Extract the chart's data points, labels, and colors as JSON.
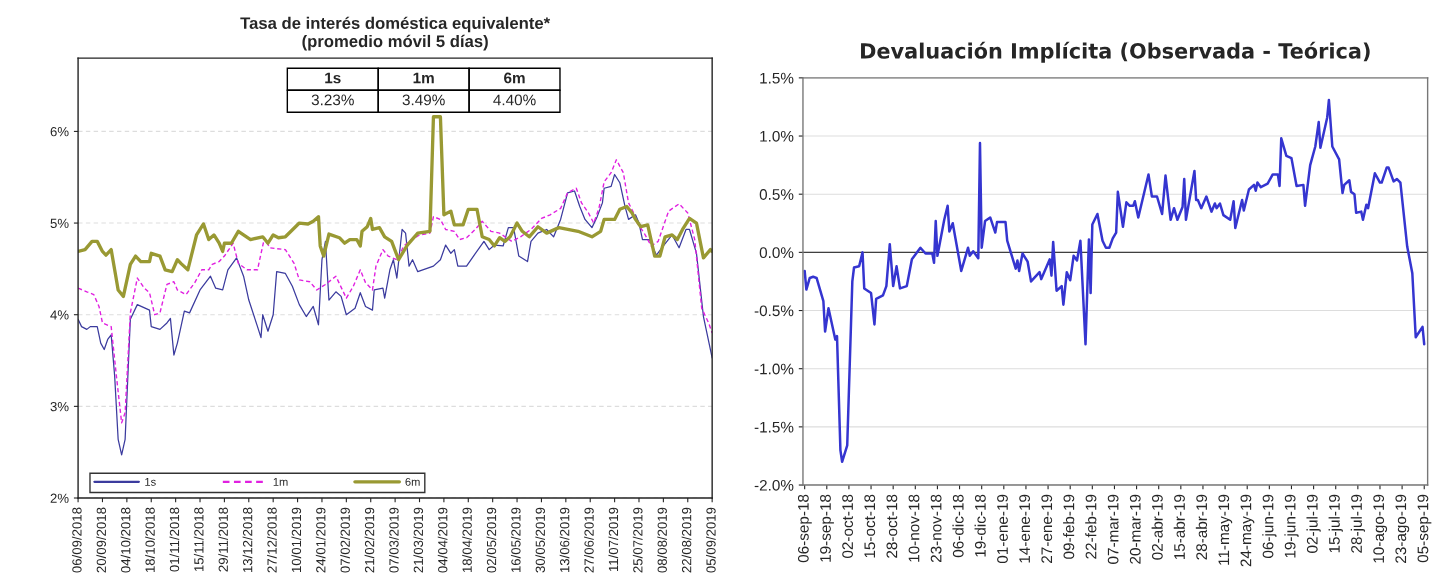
{
  "chart_data": [
    {
      "type": "line",
      "title": "Tasa de interés doméstica equivalente*",
      "subtitle": "(promedio móvil 5 días)",
      "annotations": [
        "1s",
        "1m",
        "6m",
        "3.23%",
        "3.49%",
        "4.40%"
      ],
      "ylim": [
        2,
        6.8
      ],
      "yticks": [
        {
          "value": 2,
          "label": "2%"
        },
        {
          "value": 3,
          "label": "3%"
        },
        {
          "value": 4,
          "label": "4%"
        },
        {
          "value": 5,
          "label": "5%"
        },
        {
          "value": 6,
          "label": "6%"
        }
      ],
      "xlim": [
        "2018-09-06",
        "2019-09-05"
      ],
      "xticks": [
        {
          "value": "2018-09-06",
          "label": "06/09/2018"
        },
        {
          "value": "2018-09-20",
          "label": "20/09/2018"
        },
        {
          "value": "2018-10-04",
          "label": "04/10/2018"
        },
        {
          "value": "2018-10-18",
          "label": "18/10/2018"
        },
        {
          "value": "2018-11-01",
          "label": "01/11/2018"
        },
        {
          "value": "2018-11-15",
          "label": "15/11/2018"
        },
        {
          "value": "2018-11-29",
          "label": "29/11/2018"
        },
        {
          "value": "2018-12-13",
          "label": "13/12/2018"
        },
        {
          "value": "2018-12-27",
          "label": "27/12/2018"
        },
        {
          "value": "2019-01-10",
          "label": "10/01/2019"
        },
        {
          "value": "2019-01-24",
          "label": "24/01/2019"
        },
        {
          "value": "2019-02-07",
          "label": "07/02/2019"
        },
        {
          "value": "2019-02-21",
          "label": "21/02/2019"
        },
        {
          "value": "2019-03-07",
          "label": "07/03/2019"
        },
        {
          "value": "2019-03-21",
          "label": "21/03/2019"
        },
        {
          "value": "2019-04-04",
          "label": "04/04/2019"
        },
        {
          "value": "2019-04-18",
          "label": "18/04/2019"
        },
        {
          "value": "2019-05-02",
          "label": "02/05/2019"
        },
        {
          "value": "2019-05-16",
          "label": "16/05/2019"
        },
        {
          "value": "2019-05-30",
          "label": "30/05/2019"
        },
        {
          "value": "2019-06-13",
          "label": "13/06/2019"
        },
        {
          "value": "2019-06-27",
          "label": "27/06/2019"
        },
        {
          "value": "2019-07-11",
          "label": "11/07/2019"
        },
        {
          "value": "2019-07-25",
          "label": "25/07/2019"
        },
        {
          "value": "2019-08-08",
          "label": "08/08/2019"
        },
        {
          "value": "2019-08-22",
          "label": "22/08/2019"
        },
        {
          "value": "2019-09-05",
          "label": "05/09/2019"
        }
      ],
      "grid": "y",
      "legend": "bottom left",
      "series": [
        {
          "name": "1s",
          "color": "#3b3b9e",
          "line_style": "solid",
          "x": [
            "2018-09-06",
            "2018-09-08",
            "2018-09-11",
            "2018-09-13",
            "2018-09-17",
            "2018-09-19",
            "2018-09-21",
            "2018-09-23",
            "2018-09-25",
            "2018-09-27",
            "2018-09-29",
            "2018-10-01",
            "2018-10-03",
            "2018-10-06",
            "2018-10-10",
            "2018-10-17",
            "2018-10-18",
            "2018-10-23",
            "2018-10-27",
            "2018-10-29",
            "2018-10-31",
            "2018-11-02",
            "2018-11-06",
            "2018-11-09",
            "2018-11-15",
            "2018-11-21",
            "2018-11-24",
            "2018-11-28",
            "2018-12-01",
            "2018-12-06",
            "2018-12-10",
            "2018-12-13",
            "2018-12-18",
            "2018-12-20",
            "2018-12-21",
            "2018-12-24",
            "2018-12-27",
            "2018-12-29",
            "2019-01-03",
            "2019-01-07",
            "2019-01-11",
            "2019-01-15",
            "2019-01-19",
            "2019-01-22",
            "2019-01-24",
            "2019-01-26",
            "2019-01-28",
            "2019-02-01",
            "2019-02-04",
            "2019-02-07",
            "2019-02-12",
            "2019-02-15",
            "2019-02-18",
            "2019-02-22",
            "2019-02-23",
            "2019-02-28",
            "2019-03-01",
            "2019-03-04",
            "2019-03-06",
            "2019-03-08",
            "2019-03-11",
            "2019-03-13",
            "2019-03-15",
            "2019-03-17",
            "2019-03-20",
            "2019-03-29",
            "2019-04-02",
            "2019-04-05",
            "2019-04-08",
            "2019-04-10",
            "2019-04-12",
            "2019-04-17",
            "2019-04-21",
            "2019-04-27",
            "2019-04-30",
            "2019-05-03",
            "2019-05-08",
            "2019-05-11",
            "2019-05-14",
            "2019-05-17",
            "2019-05-22",
            "2019-05-24",
            "2019-05-28",
            "2019-06-02",
            "2019-06-06",
            "2019-06-10",
            "2019-06-14",
            "2019-06-18",
            "2019-06-21",
            "2019-06-24",
            "2019-06-28",
            "2019-07-01",
            "2019-07-04",
            "2019-07-05",
            "2019-07-09",
            "2019-07-11",
            "2019-07-14",
            "2019-07-17",
            "2019-07-19",
            "2019-07-23",
            "2019-07-25",
            "2019-07-27",
            "2019-07-31",
            "2019-08-04",
            "2019-08-08",
            "2019-08-13",
            "2019-08-17",
            "2019-08-21",
            "2019-08-23",
            "2019-08-27",
            "2019-08-31",
            "2019-09-04",
            "2019-09-05"
          ],
          "values": [
            3.95,
            3.87,
            3.84,
            3.87,
            3.87,
            3.69,
            3.62,
            3.73,
            3.78,
            3.33,
            2.64,
            2.47,
            2.64,
            3.95,
            4.11,
            4.05,
            3.87,
            3.84,
            3.91,
            3.96,
            3.56,
            3.69,
            4.04,
            4.02,
            4.27,
            4.42,
            4.29,
            4.27,
            4.49,
            4.62,
            4.42,
            4.16,
            3.87,
            3.75,
            4.0,
            3.82,
            4.0,
            4.47,
            4.45,
            4.31,
            4.11,
            3.98,
            4.09,
            3.89,
            4.6,
            4.8,
            4.16,
            4.25,
            4.2,
            4.0,
            4.07,
            4.24,
            4.09,
            4.05,
            4.27,
            4.29,
            4.18,
            4.49,
            4.6,
            4.4,
            4.93,
            4.89,
            4.53,
            4.6,
            4.47,
            4.53,
            4.6,
            4.76,
            4.67,
            4.71,
            4.53,
            4.53,
            4.64,
            4.8,
            4.71,
            4.76,
            4.75,
            4.95,
            4.95,
            4.64,
            4.58,
            4.8,
            4.89,
            4.93,
            4.85,
            5.04,
            5.33,
            5.35,
            5.18,
            5.04,
            4.95,
            5.07,
            5.22,
            5.38,
            5.4,
            5.53,
            5.44,
            5.18,
            5.04,
            5.09,
            5.0,
            4.82,
            4.82,
            4.65,
            4.75,
            4.87,
            4.73,
            4.93,
            4.93,
            4.67,
            3.98,
            3.62,
            3.53
          ]
        },
        {
          "name": "1m",
          "color": "#e020e0",
          "line_style": "dashed",
          "x": [
            "2018-09-06",
            "2018-09-11",
            "2018-09-15",
            "2018-09-18",
            "2018-09-20",
            "2018-09-25",
            "2018-09-28",
            "2018-10-01",
            "2018-10-03",
            "2018-10-06",
            "2018-10-10",
            "2018-10-14",
            "2018-10-17",
            "2018-10-20",
            "2018-10-23",
            "2018-10-27",
            "2018-10-31",
            "2018-11-02",
            "2018-11-07",
            "2018-11-12",
            "2018-11-16",
            "2018-11-20",
            "2018-11-22",
            "2018-11-26",
            "2018-11-29",
            "2018-12-04",
            "2018-12-07",
            "2018-12-12",
            "2018-12-18",
            "2018-12-22",
            "2018-12-25",
            "2019-01-03",
            "2019-01-08",
            "2019-01-11",
            "2019-01-17",
            "2019-01-21",
            "2019-01-26",
            "2019-02-01",
            "2019-02-07",
            "2019-02-11",
            "2019-02-15",
            "2019-02-18",
            "2019-02-22",
            "2019-02-24",
            "2019-02-28",
            "2019-03-03",
            "2019-03-08",
            "2019-03-12",
            "2019-03-15",
            "2019-03-21",
            "2019-03-27",
            "2019-03-29",
            "2019-04-02",
            "2019-04-05",
            "2019-04-10",
            "2019-04-13",
            "2019-04-17",
            "2019-04-22",
            "2019-04-26",
            "2019-05-01",
            "2019-05-06",
            "2019-05-13",
            "2019-05-18",
            "2019-05-24",
            "2019-05-30",
            "2019-06-04",
            "2019-06-10",
            "2019-06-14",
            "2019-06-19",
            "2019-06-22",
            "2019-06-26",
            "2019-06-29",
            "2019-07-02",
            "2019-07-05",
            "2019-07-09",
            "2019-07-12",
            "2019-07-16",
            "2019-07-19",
            "2019-07-22",
            "2019-07-24",
            "2019-07-28",
            "2019-08-01",
            "2019-08-05",
            "2019-08-11",
            "2019-08-17",
            "2019-08-22",
            "2019-08-26",
            "2019-08-30",
            "2019-09-03",
            "2019-09-05"
          ],
          "values": [
            4.29,
            4.25,
            4.22,
            4.09,
            3.91,
            3.87,
            3.33,
            2.82,
            2.93,
            4.02,
            4.4,
            4.29,
            4.24,
            4.0,
            4.02,
            4.33,
            4.36,
            4.27,
            4.22,
            4.35,
            4.49,
            4.49,
            4.55,
            4.58,
            4.64,
            4.78,
            4.56,
            4.49,
            4.49,
            4.84,
            4.73,
            4.71,
            4.56,
            4.38,
            4.36,
            4.27,
            4.33,
            4.42,
            4.18,
            4.31,
            4.49,
            4.35,
            4.27,
            4.53,
            4.71,
            4.64,
            4.6,
            4.75,
            4.8,
            4.87,
            4.89,
            5.07,
            5.04,
            4.93,
            4.91,
            4.82,
            4.84,
            4.93,
            5.02,
            4.91,
            4.89,
            4.8,
            4.85,
            4.93,
            5.05,
            5.09,
            5.16,
            5.33,
            5.38,
            5.22,
            5.11,
            5.0,
            5.16,
            5.45,
            5.55,
            5.69,
            5.55,
            5.22,
            5.11,
            5.0,
            4.89,
            4.75,
            4.8,
            5.13,
            5.21,
            5.11,
            4.82,
            4.07,
            3.91,
            3.8
          ]
        },
        {
          "name": "6m",
          "color": "#999933",
          "line_style": "solid",
          "x": [
            "2018-09-06",
            "2018-09-10",
            "2018-09-14",
            "2018-09-17",
            "2018-09-20",
            "2018-09-22",
            "2018-09-25",
            "2018-09-27",
            "2018-09-29",
            "2018-10-02",
            "2018-10-06",
            "2018-10-09",
            "2018-10-12",
            "2018-10-17",
            "2018-10-18",
            "2018-10-23",
            "2018-10-26",
            "2018-10-30",
            "2018-11-02",
            "2018-11-04",
            "2018-11-08",
            "2018-11-13",
            "2018-11-17",
            "2018-11-20",
            "2018-11-23",
            "2018-11-26",
            "2018-11-28",
            "2018-11-29",
            "2018-12-03",
            "2018-12-07",
            "2018-12-14",
            "2018-12-21",
            "2018-12-24",
            "2018-12-27",
            "2018-12-30",
            "2019-01-03",
            "2019-01-11",
            "2019-01-16",
            "2019-01-19",
            "2019-01-22",
            "2019-01-23",
            "2019-01-25",
            "2019-01-28",
            "2019-02-03",
            "2019-02-06",
            "2019-02-09",
            "2019-02-13",
            "2019-02-15",
            "2019-02-16",
            "2019-02-19",
            "2019-02-21",
            "2019-02-22",
            "2019-02-26",
            "2019-03-01",
            "2019-03-05",
            "2019-03-09",
            "2019-03-14",
            "2019-03-20",
            "2019-03-27",
            "2019-03-29",
            "2019-04-02",
            "2019-04-04",
            "2019-04-08",
            "2019-04-10",
            "2019-04-15",
            "2019-04-18",
            "2019-04-23",
            "2019-04-26",
            "2019-04-30",
            "2019-05-03",
            "2019-05-06",
            "2019-05-09",
            "2019-05-12",
            "2019-05-16",
            "2019-05-19",
            "2019-05-23",
            "2019-05-28",
            "2019-06-02",
            "2019-06-09",
            "2019-06-20",
            "2019-06-28",
            "2019-07-03",
            "2019-07-05",
            "2019-07-11",
            "2019-07-14",
            "2019-07-18",
            "2019-07-21",
            "2019-07-23",
            "2019-07-26",
            "2019-07-30",
            "2019-08-03",
            "2019-08-06",
            "2019-08-09",
            "2019-08-13",
            "2019-08-16",
            "2019-08-19",
            "2019-08-23",
            "2019-08-27",
            "2019-08-31",
            "2019-09-04",
            "2019-09-05"
          ],
          "values": [
            4.69,
            4.71,
            4.8,
            4.8,
            4.69,
            4.65,
            4.71,
            4.49,
            4.27,
            4.2,
            4.55,
            4.64,
            4.58,
            4.58,
            4.67,
            4.64,
            4.49,
            4.47,
            4.6,
            4.56,
            4.49,
            4.87,
            4.99,
            4.82,
            4.87,
            4.78,
            4.69,
            4.78,
            4.78,
            4.91,
            4.82,
            4.85,
            4.78,
            4.87,
            4.84,
            4.85,
            5.0,
            4.99,
            5.02,
            5.07,
            4.75,
            4.64,
            4.88,
            4.84,
            4.78,
            4.82,
            4.82,
            4.75,
            4.91,
            4.96,
            5.05,
            4.93,
            4.95,
            4.85,
            4.8,
            4.6,
            4.76,
            4.89,
            4.91,
            6.16,
            6.16,
            5.09,
            5.13,
            4.98,
            4.98,
            5.15,
            5.15,
            4.85,
            4.82,
            4.75,
            4.84,
            4.8,
            4.85,
            5.0,
            4.91,
            4.85,
            4.96,
            4.89,
            4.95,
            4.91,
            4.85,
            4.91,
            5.04,
            5.04,
            5.15,
            5.18,
            5.11,
            5.04,
            4.96,
            4.98,
            4.64,
            4.64,
            4.85,
            4.87,
            4.82,
            4.93,
            5.05,
            5.0,
            4.62,
            4.71,
            4.69
          ]
        }
      ]
    },
    {
      "type": "line",
      "title": "Devaluación Implícita (Observada - Teórica)",
      "ylim": [
        -2.0,
        1.5
      ],
      "yticks": [
        {
          "value": -2.0,
          "label": "-2.0%"
        },
        {
          "value": -1.5,
          "label": "-1.5%"
        },
        {
          "value": -1.0,
          "label": "-1.0%"
        },
        {
          "value": -0.5,
          "label": "-0.5%"
        },
        {
          "value": 0.0,
          "label": "0.0%"
        },
        {
          "value": 0.5,
          "label": "0.5%"
        },
        {
          "value": 1.0,
          "label": "1.0%"
        },
        {
          "value": 1.5,
          "label": "1.5%"
        }
      ],
      "xlim": [
        "2018-09-05",
        "2019-09-07"
      ],
      "xticks": [
        {
          "value": "2018-09-06",
          "label": "06-sep-18"
        },
        {
          "value": "2018-09-19",
          "label": "19-sep-18"
        },
        {
          "value": "2018-10-02",
          "label": "02-oct-18"
        },
        {
          "value": "2018-10-15",
          "label": "15-oct-18"
        },
        {
          "value": "2018-10-28",
          "label": "28-oct-18"
        },
        {
          "value": "2018-11-10",
          "label": "10-nov-18"
        },
        {
          "value": "2018-11-23",
          "label": "23-nov-18"
        },
        {
          "value": "2018-12-06",
          "label": "06-dic-18"
        },
        {
          "value": "2018-12-19",
          "label": "19-dic-18"
        },
        {
          "value": "2019-01-01",
          "label": "01-ene-19"
        },
        {
          "value": "2019-01-14",
          "label": "14-ene-19"
        },
        {
          "value": "2019-01-27",
          "label": "27-ene-19"
        },
        {
          "value": "2019-02-09",
          "label": "09-feb-19"
        },
        {
          "value": "2019-02-22",
          "label": "22-feb-19"
        },
        {
          "value": "2019-03-07",
          "label": "07-mar-19"
        },
        {
          "value": "2019-03-20",
          "label": "20-mar-19"
        },
        {
          "value": "2019-04-02",
          "label": "02-abr-19"
        },
        {
          "value": "2019-04-15",
          "label": "15-abr-19"
        },
        {
          "value": "2019-04-28",
          "label": "28-abr-19"
        },
        {
          "value": "2019-05-11",
          "label": "11-may-19"
        },
        {
          "value": "2019-05-24",
          "label": "24-may-19"
        },
        {
          "value": "2019-06-06",
          "label": "06-jun-19"
        },
        {
          "value": "2019-06-19",
          "label": "19-jun-19"
        },
        {
          "value": "2019-07-02",
          "label": "02-jul-19"
        },
        {
          "value": "2019-07-15",
          "label": "15-jul-19"
        },
        {
          "value": "2019-07-28",
          "label": "28-jul-19"
        },
        {
          "value": "2019-08-10",
          "label": "10-ago-19"
        },
        {
          "value": "2019-08-23",
          "label": "23-ago-19"
        },
        {
          "value": "2019-09-05",
          "label": "05-sep-19"
        }
      ],
      "grid": "y",
      "ref_lines": [
        {
          "axis": "y",
          "value": 0.0,
          "color": "#404040"
        }
      ],
      "series": [
        {
          "color": "#3535d0",
          "x": [
            "2018-09-06",
            "2018-09-07",
            "2018-09-09",
            "2018-09-11",
            "2018-09-13",
            "2018-09-17",
            "2018-09-18",
            "2018-09-20",
            "2018-09-24",
            "2018-09-25",
            "2018-09-27",
            "2018-09-28",
            "2018-10-01",
            "2018-10-04",
            "2018-10-05",
            "2018-10-08",
            "2018-10-10",
            "2018-10-11",
            "2018-10-15",
            "2018-10-17",
            "2018-10-18",
            "2018-10-22",
            "2018-10-24",
            "2018-10-26",
            "2018-10-28",
            "2018-10-30",
            "2018-11-01",
            "2018-11-05",
            "2018-11-08",
            "2018-11-13",
            "2018-11-16",
            "2018-11-20",
            "2018-11-21",
            "2018-11-22",
            "2018-11-23",
            "2018-11-27",
            "2018-11-29",
            "2018-11-30",
            "2018-12-02",
            "2018-12-07",
            "2018-12-11",
            "2018-12-12",
            "2018-12-14",
            "2018-12-17",
            "2018-12-18",
            "2018-12-19",
            "2018-12-21",
            "2018-12-24",
            "2018-12-27",
            "2018-12-28",
            "2019-01-02",
            "2019-01-03",
            "2019-01-08",
            "2019-01-09",
            "2019-01-10",
            "2019-01-12",
            "2019-01-15",
            "2019-01-17",
            "2019-01-22",
            "2019-01-23",
            "2019-01-28",
            "2019-01-29",
            "2019-01-30",
            "2019-02-01",
            "2019-02-04",
            "2019-02-05",
            "2019-02-07",
            "2019-02-09",
            "2019-02-11",
            "2019-02-13",
            "2019-02-15",
            "2019-02-18",
            "2019-02-20",
            "2019-02-21",
            "2019-02-22",
            "2019-02-25",
            "2019-02-28",
            "2019-03-02",
            "2019-03-04",
            "2019-03-06",
            "2019-03-08",
            "2019-03-09",
            "2019-03-12",
            "2019-03-14",
            "2019-03-16",
            "2019-03-18",
            "2019-03-19",
            "2019-03-21",
            "2019-03-27",
            "2019-03-29",
            "2019-04-01",
            "2019-04-04",
            "2019-04-06",
            "2019-04-09",
            "2019-04-11",
            "2019-04-13",
            "2019-04-16",
            "2019-04-17",
            "2019-04-18",
            "2019-04-23",
            "2019-04-24",
            "2019-04-25",
            "2019-04-27",
            "2019-04-30",
            "2019-05-03",
            "2019-05-05",
            "2019-05-06",
            "2019-05-08",
            "2019-05-10",
            "2019-05-14",
            "2019-05-16",
            "2019-05-17",
            "2019-05-21",
            "2019-05-22",
            "2019-05-25",
            "2019-05-28",
            "2019-05-29",
            "2019-05-30",
            "2019-06-01",
            "2019-06-05",
            "2019-06-08",
            "2019-06-11",
            "2019-06-12",
            "2019-06-13",
            "2019-06-16",
            "2019-06-19",
            "2019-06-21",
            "2019-06-22",
            "2019-06-26",
            "2019-06-27",
            "2019-06-30",
            "2019-07-03",
            "2019-07-05",
            "2019-07-06",
            "2019-07-10",
            "2019-07-11",
            "2019-07-13",
            "2019-07-17",
            "2019-07-19",
            "2019-07-20",
            "2019-07-23",
            "2019-07-24",
            "2019-07-26",
            "2019-07-27",
            "2019-07-30",
            "2019-07-31",
            "2019-08-02",
            "2019-08-03",
            "2019-08-07",
            "2019-08-10",
            "2019-08-11",
            "2019-08-14",
            "2019-08-15",
            "2019-08-18",
            "2019-08-20",
            "2019-08-22",
            "2019-08-26",
            "2019-08-29",
            "2019-08-31",
            "2019-09-04",
            "2019-09-05"
          ],
          "values": [
            -0.16,
            -0.32,
            -0.22,
            -0.21,
            -0.22,
            -0.42,
            -0.68,
            -0.48,
            -0.75,
            -0.72,
            -1.7,
            -1.8,
            -1.66,
            -0.25,
            -0.13,
            -0.12,
            0.0,
            -0.31,
            -0.35,
            -0.62,
            -0.4,
            -0.37,
            -0.29,
            0.07,
            -0.29,
            -0.12,
            -0.31,
            -0.29,
            -0.06,
            0.04,
            -0.01,
            -0.01,
            -0.09,
            0.27,
            -0.03,
            0.28,
            0.4,
            0.18,
            0.25,
            -0.16,
            0.04,
            -0.03,
            0.01,
            -0.05,
            0.94,
            0.04,
            0.27,
            0.3,
            0.17,
            0.26,
            0.26,
            0.1,
            -0.14,
            -0.07,
            -0.16,
            -0.01,
            -0.08,
            -0.25,
            -0.17,
            -0.23,
            -0.06,
            -0.2,
            0.09,
            -0.33,
            -0.29,
            -0.45,
            -0.17,
            -0.24,
            -0.03,
            -0.07,
            0.1,
            -0.79,
            0.11,
            -0.35,
            0.24,
            0.33,
            0.1,
            0.04,
            0.04,
            0.12,
            0.17,
            0.52,
            0.22,
            0.43,
            0.4,
            0.4,
            0.44,
            0.3,
            0.67,
            0.48,
            0.48,
            0.33,
            0.66,
            0.28,
            0.38,
            0.28,
            0.39,
            0.63,
            0.28,
            0.7,
            0.45,
            0.45,
            0.38,
            0.48,
            0.35,
            0.42,
            0.38,
            0.42,
            0.32,
            0.28,
            0.44,
            0.21,
            0.45,
            0.36,
            0.54,
            0.58,
            0.53,
            0.6,
            0.56,
            0.59,
            0.67,
            0.67,
            0.57,
            0.98,
            0.83,
            0.81,
            0.65,
            0.57,
            0.58,
            0.4,
            0.75,
            0.91,
            1.12,
            0.9,
            1.16,
            1.31,
            0.91,
            0.8,
            0.51,
            0.58,
            0.62,
            0.52,
            0.5,
            0.34,
            0.35,
            0.28,
            0.41,
            0.38,
            0.68,
            0.6,
            0.6,
            0.73,
            0.73,
            0.61,
            0.63,
            0.6,
            0.05,
            -0.18,
            -0.73,
            -0.64,
            -0.79
          ]
        }
      ]
    }
  ]
}
